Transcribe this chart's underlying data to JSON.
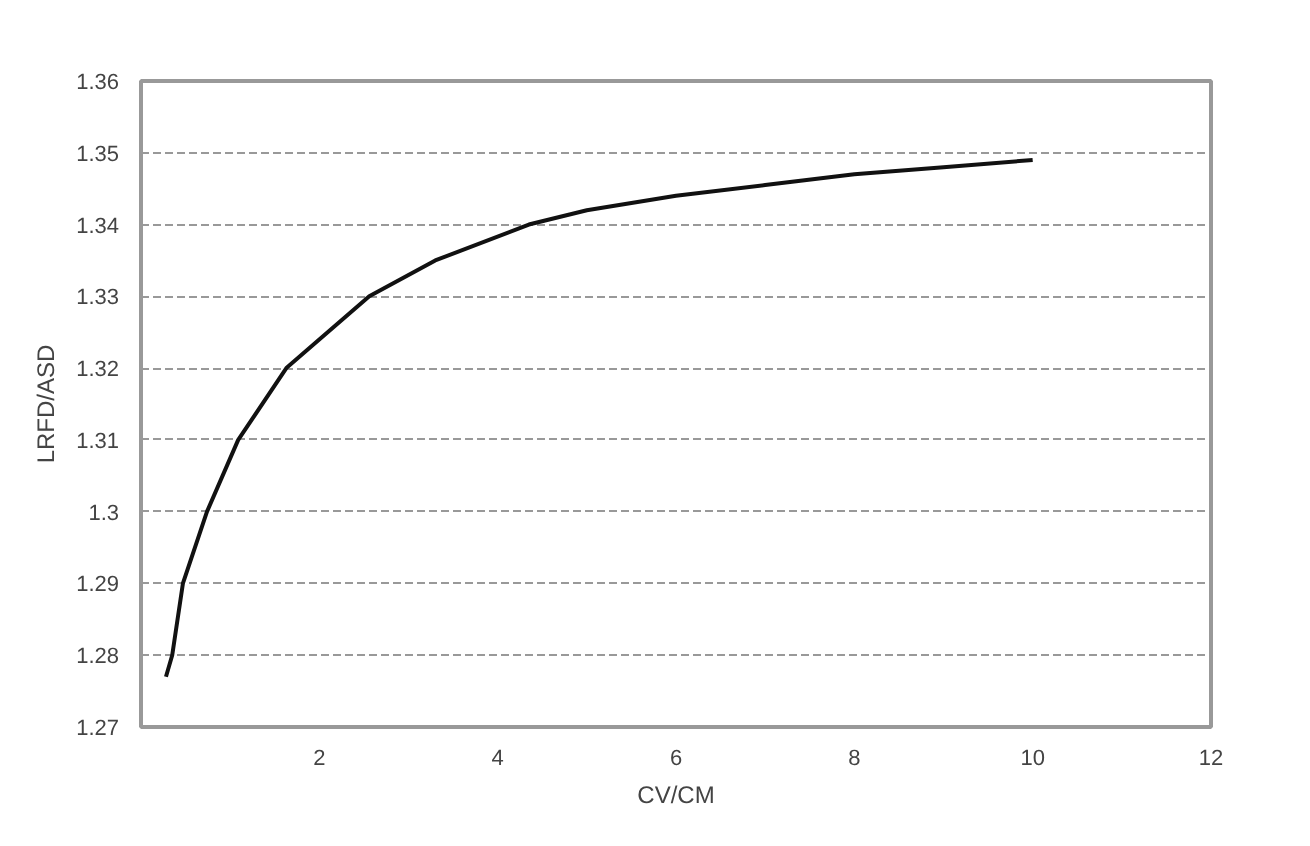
{
  "chart_data": {
    "type": "line",
    "xlabel": "CV/CM",
    "ylabel": "LRFD/ASD",
    "x": [
      0.28,
      0.35,
      0.47,
      0.74,
      1.09,
      1.63,
      2.56,
      3.3,
      4.35,
      5,
      6,
      7,
      8,
      9,
      10
    ],
    "series": [
      {
        "color": "#111111",
        "values": [
          1.277,
          1.28,
          1.29,
          1.3,
          1.31,
          1.32,
          1.33,
          1.335,
          1.34,
          1.342,
          1.344,
          1.3455,
          1.347,
          1.348,
          1.349
        ]
      }
    ],
    "xlim": [
      0,
      12
    ],
    "xticks": [
      2,
      4,
      6,
      8,
      10,
      12
    ],
    "ylim": [
      1.27,
      1.36
    ],
    "yticks": [
      1.27,
      1.28,
      1.29,
      1.3,
      1.31,
      1.32,
      1.33,
      1.34,
      1.35,
      1.36
    ],
    "grid": "y",
    "marker": "none",
    "line_style": "solid"
  }
}
